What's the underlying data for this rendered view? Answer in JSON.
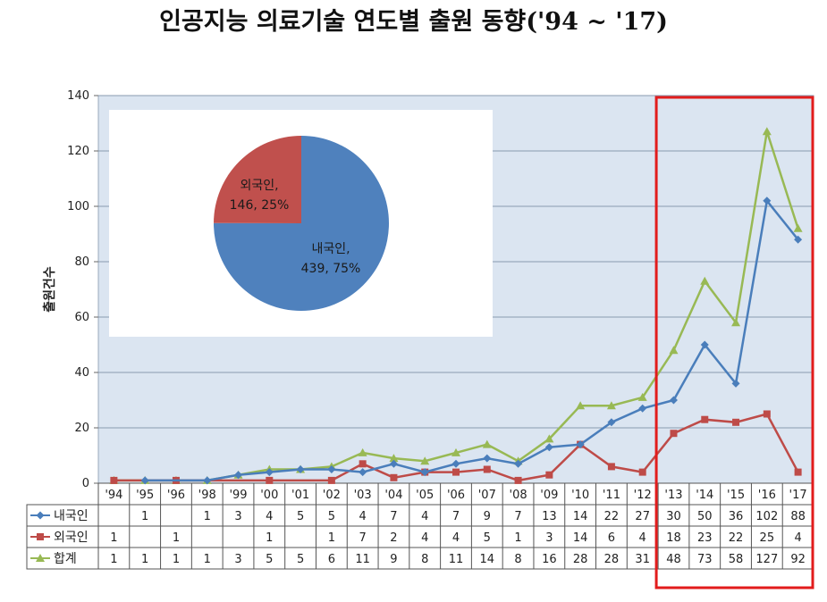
{
  "title": "인공지능 의료기술 연도별 출원 동향('94 ~ '17)",
  "chart_data": [
    {
      "type": "line",
      "ylabel": "출원건수",
      "ylim": [
        0,
        140
      ],
      "yticks": [
        0,
        20,
        40,
        60,
        80,
        100,
        120,
        140
      ],
      "categories": [
        "'94",
        "'95",
        "'96",
        "'98",
        "'99",
        "'00",
        "'01",
        "'02",
        "'03",
        "'04",
        "'05",
        "'06",
        "'07",
        "'08",
        "'09",
        "'10",
        "'11",
        "'12",
        "'13",
        "'14",
        "'15",
        "'16",
        "'17"
      ],
      "series": [
        {
          "name": "내국인",
          "color": "#4a7ebb",
          "marker": "diamond",
          "values": [
            null,
            1,
            null,
            1,
            3,
            4,
            5,
            5,
            4,
            7,
            4,
            7,
            9,
            7,
            13,
            14,
            22,
            27,
            30,
            50,
            36,
            102,
            88
          ]
        },
        {
          "name": "외국인",
          "color": "#be4b48",
          "marker": "square",
          "values": [
            1,
            null,
            1,
            null,
            null,
            1,
            null,
            1,
            7,
            2,
            4,
            4,
            5,
            1,
            3,
            14,
            6,
            4,
            18,
            23,
            22,
            25,
            4
          ]
        },
        {
          "name": "합계",
          "color": "#98b954",
          "marker": "triangle",
          "values": [
            1,
            1,
            1,
            1,
            3,
            5,
            5,
            6,
            11,
            9,
            8,
            11,
            14,
            8,
            16,
            28,
            28,
            31,
            48,
            73,
            58,
            127,
            92
          ]
        }
      ],
      "grid": true,
      "legend": "table-left",
      "highlight": {
        "from": "'13",
        "to": "'17",
        "color": "#e21c1c"
      }
    },
    {
      "type": "pie",
      "slices": [
        {
          "label": "내국인,",
          "value": 439,
          "value_label": "439, 75%",
          "color": "#4f81bd"
        },
        {
          "label": "외국인,",
          "value": 146,
          "value_label": "146, 25%",
          "color": "#c0504d"
        }
      ],
      "placement": "inset-top-left"
    }
  ]
}
